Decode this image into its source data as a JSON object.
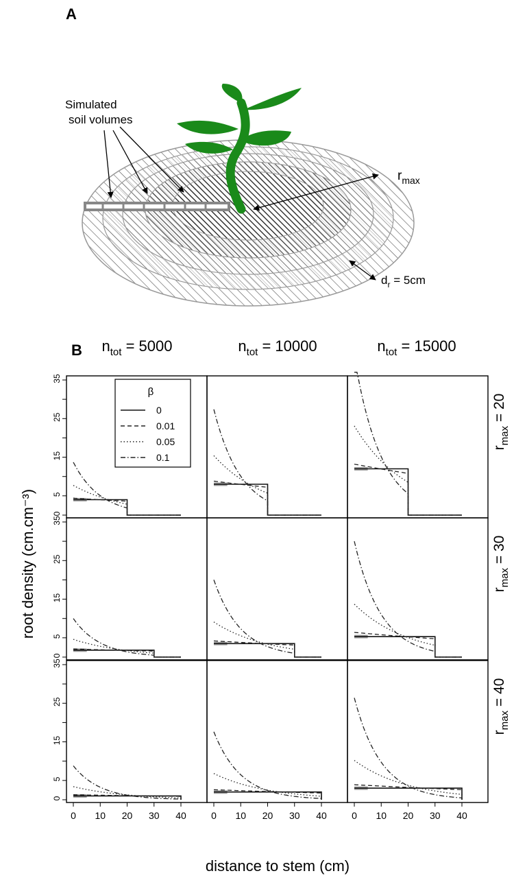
{
  "panel_a": {
    "letter": "A",
    "sim_label_1": "Simulated",
    "sim_label_2": "soil volumes",
    "rmax_base": "r",
    "rmax_sub": "max",
    "dr_base": "d",
    "dr_sub": "r",
    "dr_value": " = 5cm"
  },
  "panel_b": {
    "letter": "B"
  },
  "chart_data": {
    "type": "line",
    "title": "",
    "xlabel": "distance to stem (cm)",
    "ylabel": "root density (cm.cm⁻³)",
    "x_ticks": [
      "0",
      "10",
      "20",
      "30",
      "40"
    ],
    "y_ticks": [
      "0",
      "5",
      "15",
      "25",
      "35"
    ],
    "xlim": [
      0,
      40
    ],
    "ylim": [
      0,
      35
    ],
    "column_headers": [
      {
        "base": "n",
        "sub": "tot",
        "value": " = 5000",
        "n_tot": 5000
      },
      {
        "base": "n",
        "sub": "tot",
        "value": " = 10000",
        "n_tot": 10000
      },
      {
        "base": "n",
        "sub": "tot",
        "value": " = 15000",
        "n_tot": 15000
      }
    ],
    "row_headers": [
      {
        "base": "r",
        "sub": "max",
        "value": " = 20",
        "r_max": 20
      },
      {
        "base": "r",
        "sub": "max",
        "value": " = 30",
        "r_max": 30
      },
      {
        "base": "r",
        "sub": "max",
        "value": " = 40",
        "r_max": 40
      }
    ],
    "legend": {
      "title": "β",
      "position": "inside top-left panel",
      "entries": [
        {
          "label": "0",
          "beta": 0,
          "dash": "solid"
        },
        {
          "label": "0.01",
          "beta": 0.01,
          "dash": "dashed"
        },
        {
          "label": "0.05",
          "beta": 0.05,
          "dash": "dotted"
        },
        {
          "label": "0.1",
          "beta": 0.1,
          "dash": "dashdot"
        }
      ]
    },
    "series_colors": {
      "beta_0": "#111111",
      "beta_0_shadow": "#9a9a9a",
      "others": "#222222"
    },
    "panels": [
      {
        "row": 0,
        "col": 0,
        "r_max": 20,
        "n_tot": 5000,
        "values_at_stem": {
          "beta_0": 4.0,
          "beta_0.01": 4.4,
          "beta_0.05": 7.7,
          "beta_0.1": 13.7
        }
      },
      {
        "row": 0,
        "col": 1,
        "r_max": 20,
        "n_tot": 10000,
        "values_at_stem": {
          "beta_0": 8.0,
          "beta_0.01": 8.8,
          "beta_0.05": 15.4,
          "beta_0.1": 27.4
        }
      },
      {
        "row": 0,
        "col": 2,
        "r_max": 20,
        "n_tot": 15000,
        "values_at_stem": {
          "beta_0": 12.0,
          "beta_0.01": 13.2,
          "beta_0.05": 23.1,
          "beta_0.1": 41.1
        }
      },
      {
        "row": 1,
        "col": 0,
        "r_max": 30,
        "n_tot": 5000,
        "values_at_stem": {
          "beta_0": 1.8,
          "beta_0.01": 2.1,
          "beta_0.05": 4.6,
          "beta_0.1": 10.0
        }
      },
      {
        "row": 1,
        "col": 1,
        "r_max": 30,
        "n_tot": 10000,
        "values_at_stem": {
          "beta_0": 3.5,
          "beta_0.01": 4.2,
          "beta_0.05": 9.1,
          "beta_0.1": 20.0
        }
      },
      {
        "row": 1,
        "col": 2,
        "r_max": 30,
        "n_tot": 15000,
        "values_at_stem": {
          "beta_0": 5.3,
          "beta_0.01": 6.4,
          "beta_0.05": 13.7,
          "beta_0.1": 30.0
        }
      },
      {
        "row": 2,
        "col": 0,
        "r_max": 40,
        "n_tot": 5000,
        "values_at_stem": {
          "beta_0": 1.0,
          "beta_0.01": 1.3,
          "beta_0.05": 3.4,
          "beta_0.1": 8.8
        }
      },
      {
        "row": 2,
        "col": 1,
        "r_max": 40,
        "n_tot": 10000,
        "values_at_stem": {
          "beta_0": 2.0,
          "beta_0.01": 2.6,
          "beta_0.05": 6.8,
          "beta_0.1": 17.6
        }
      },
      {
        "row": 2,
        "col": 2,
        "r_max": 40,
        "n_tot": 15000,
        "values_at_stem": {
          "beta_0": 3.0,
          "beta_0.01": 3.9,
          "beta_0.05": 10.2,
          "beta_0.1": 26.4
        }
      }
    ]
  }
}
